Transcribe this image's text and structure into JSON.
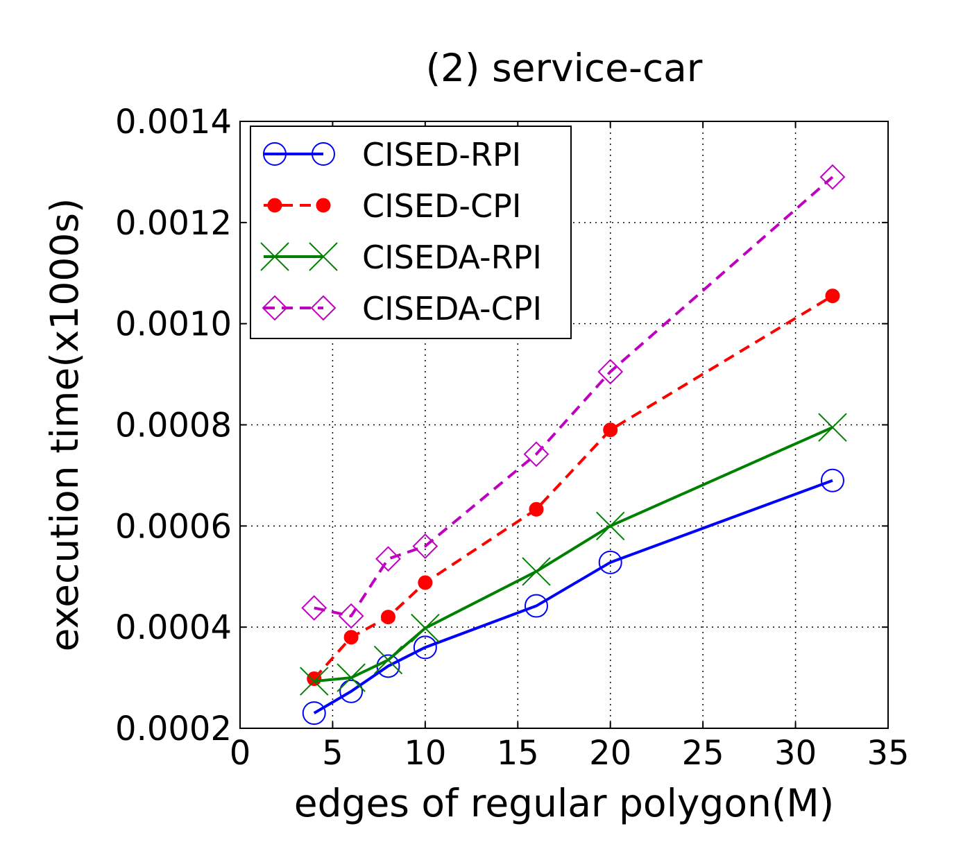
{
  "chart_data": {
    "type": "line",
    "title": "(2) service-car",
    "xlabel": "edges of regular polygon(M)",
    "ylabel": "execution time(x1000s)",
    "xlim": [
      0,
      35
    ],
    "ylim": [
      0.0002,
      0.0014
    ],
    "xticks": [
      0,
      5,
      10,
      15,
      20,
      25,
      30,
      35
    ],
    "xtick_labels": [
      "0",
      "5",
      "10",
      "15",
      "20",
      "25",
      "30",
      "35"
    ],
    "yticks": [
      0.0002,
      0.0004,
      0.0006,
      0.0008,
      0.001,
      0.0012,
      0.0014
    ],
    "ytick_labels": [
      "0.0002",
      "0.0004",
      "0.0006",
      "0.0008",
      "0.0010",
      "0.0012",
      "0.0014"
    ],
    "grid": true,
    "legend_position": "top-left",
    "x": [
      4,
      6,
      8,
      10,
      16,
      20,
      32
    ],
    "series": [
      {
        "name": "CISED-RPI",
        "color": "#0000ff",
        "linestyle": "solid",
        "marker": "open-circle",
        "values": [
          0.00023,
          0.000273,
          0.000323,
          0.00036,
          0.000442,
          0.000528,
          0.00069
        ]
      },
      {
        "name": "CISED-CPI",
        "color": "#ff0000",
        "linestyle": "dashed",
        "marker": "filled-circle",
        "values": [
          0.000298,
          0.00038,
          0.00042,
          0.000488,
          0.000633,
          0.00079,
          0.001055
        ]
      },
      {
        "name": "CISEDA-RPI",
        "color": "#008000",
        "linestyle": "solid",
        "marker": "x",
        "values": [
          0.000293,
          0.0003,
          0.000335,
          0.000398,
          0.00051,
          0.0006,
          0.000795
        ]
      },
      {
        "name": "CISEDA-CPI",
        "color": "#bf00bf",
        "linestyle": "dashed",
        "marker": "open-diamond",
        "values": [
          0.000438,
          0.000422,
          0.000535,
          0.00056,
          0.000742,
          0.000905,
          0.00129
        ]
      }
    ]
  }
}
